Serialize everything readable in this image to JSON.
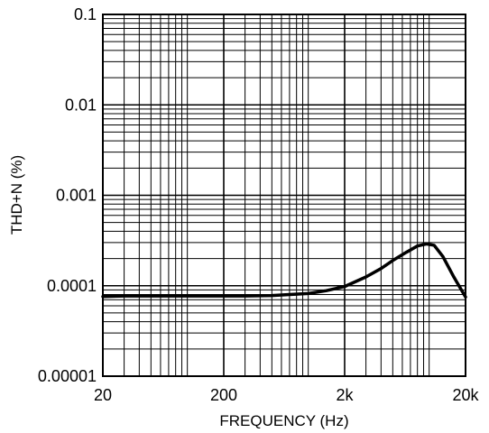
{
  "chart_data": {
    "type": "line",
    "x_scale": "log",
    "y_scale": "log",
    "xlim": [
      20,
      20000
    ],
    "ylim": [
      1e-05,
      0.1
    ],
    "grid": true,
    "xlabel": "FREQUENCY (Hz)",
    "ylabel": "THD+N (%)",
    "x_ticks": [
      {
        "value": 20,
        "label": "20"
      },
      {
        "value": 200,
        "label": "200"
      },
      {
        "value": 2000,
        "label": "2k"
      },
      {
        "value": 20000,
        "label": "20k"
      }
    ],
    "y_ticks": [
      {
        "value": 0.1,
        "label": "0.1"
      },
      {
        "value": 0.01,
        "label": "0.01"
      },
      {
        "value": 0.001,
        "label": "0.001"
      },
      {
        "value": 0.0001,
        "label": "0.0001"
      },
      {
        "value": 1e-05,
        "label": "0.00001"
      }
    ],
    "series": [
      {
        "color": "#000000",
        "x": [
          20,
          30,
          50,
          80,
          120,
          200,
          300,
          500,
          700,
          1000,
          1400,
          2000,
          3000,
          4000,
          5000,
          6500,
          8000,
          9500,
          11000,
          13000,
          16000,
          20000
        ],
        "y": [
          7.6e-05,
          7.7e-05,
          7.7e-05,
          7.7e-05,
          7.7e-05,
          7.7e-05,
          7.7e-05,
          7.8e-05,
          8e-05,
          8.2e-05,
          8.8e-05,
          9.8e-05,
          0.000125,
          0.000155,
          0.00019,
          0.000235,
          0.000275,
          0.00029,
          0.00028,
          0.00021,
          0.000125,
          7.5e-05
        ]
      }
    ]
  }
}
